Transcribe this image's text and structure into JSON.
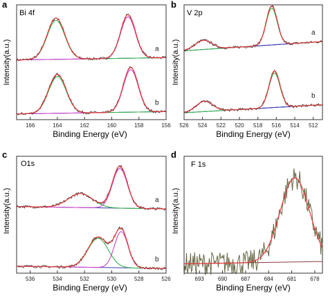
{
  "colors": {
    "green": "#2fb24b",
    "red": "#e83a3a",
    "blue": "#3a3ab0",
    "magenta": "#cc44cc",
    "olive": "#666644",
    "dark": "#333333",
    "baseline_brown": "#8b3a3a"
  },
  "chart_data": [
    {
      "panel_letter": "a",
      "type": "line",
      "title": "Bi 4f",
      "xlabel": "Binding Energy (eV)",
      "ylabel": "Intensity(a.u.)",
      "xlim": [
        167,
        156
      ],
      "x_reversed": true,
      "ylim": [
        0,
        1
      ],
      "xticks": [
        166,
        164,
        162,
        160,
        158,
        156
      ],
      "xtick_labels": [
        "166",
        "164",
        "162",
        "160",
        "158",
        "156"
      ],
      "y_ticks_shown": false,
      "traces": [
        {
          "trace_label": "a",
          "offset": 0.52,
          "baseline": {
            "from": 0.0,
            "to": 0.02
          },
          "peaks": [
            {
              "center": 164.1,
              "height": 0.36,
              "width": 0.65
            },
            {
              "center": 158.8,
              "height": 0.38,
              "width": 0.55
            }
          ],
          "components": [
            {
              "color": "green",
              "center": 164.1,
              "height": 0.34,
              "width": 0.65
            },
            {
              "color": "magenta",
              "center": 158.8,
              "height": 0.36,
              "width": 0.55
            }
          ]
        },
        {
          "trace_label": "b",
          "offset": 0.05,
          "baseline": {
            "from": 0.0,
            "to": 0.02
          },
          "peaks": [
            {
              "center": 164.0,
              "height": 0.34,
              "width": 0.65
            },
            {
              "center": 158.6,
              "height": 0.39,
              "width": 0.55
            }
          ],
          "components": [
            {
              "color": "green",
              "center": 164.0,
              "height": 0.32,
              "width": 0.65
            },
            {
              "color": "magenta",
              "center": 158.6,
              "height": 0.37,
              "width": 0.55
            }
          ]
        }
      ]
    },
    {
      "panel_letter": "b",
      "type": "line",
      "title": "V 2p",
      "xlabel": "Binding Energy (eV)",
      "ylabel": "Intensity(a.u.)",
      "xlim": [
        526,
        511
      ],
      "x_reversed": true,
      "ylim": [
        0,
        1
      ],
      "xticks": [
        526,
        524,
        522,
        520,
        518,
        516,
        514,
        512
      ],
      "xtick_labels": [
        "526",
        "524",
        "522",
        "520",
        "518",
        "516",
        "514",
        "512"
      ],
      "y_ticks_shown": false,
      "traces": [
        {
          "trace_label": "a",
          "offset": 0.6,
          "baseline": {
            "from": 0.0,
            "to": 0.08
          },
          "peaks": [
            {
              "center": 523.9,
              "height": 0.08,
              "width": 0.9
            },
            {
              "center": 516.5,
              "height": 0.34,
              "width": 0.6
            }
          ],
          "components": [
            {
              "color": "blue",
              "center": 523.9,
              "height": 0.08,
              "width": 0.9
            },
            {
              "color": "green",
              "center": 516.5,
              "height": 0.32,
              "width": 0.6
            }
          ]
        },
        {
          "trace_label": "b",
          "offset": 0.06,
          "baseline": {
            "from": 0.0,
            "to": 0.07
          },
          "peaks": [
            {
              "center": 523.8,
              "height": 0.09,
              "width": 0.9
            },
            {
              "center": 516.2,
              "height": 0.32,
              "width": 0.6
            }
          ],
          "components": [
            {
              "color": "blue",
              "center": 523.8,
              "height": 0.09,
              "width": 0.9
            },
            {
              "color": "green",
              "center": 516.2,
              "height": 0.3,
              "width": 0.6
            }
          ]
        }
      ]
    },
    {
      "panel_letter": "c",
      "type": "line",
      "title": "O1s",
      "xlabel": "Binding Energy (eV)",
      "ylabel": "Intensity(a.u.)",
      "xlim": [
        537,
        526
      ],
      "x_reversed": true,
      "ylim": [
        0,
        1
      ],
      "xticks": [
        536,
        534,
        532,
        530,
        528,
        526
      ],
      "xtick_labels": [
        "536",
        "534",
        "532",
        "530",
        "528",
        "526"
      ],
      "y_ticks_shown": false,
      "traces": [
        {
          "trace_label": "a",
          "offset": 0.55,
          "baseline": {
            "from": 0.02,
            "to": 0.0
          },
          "peaks": [
            {
              "center": 532.3,
              "height": 0.12,
              "width": 0.9
            },
            {
              "center": 529.4,
              "height": 0.36,
              "width": 0.55
            }
          ],
          "components": [
            {
              "color": "green",
              "center": 532.3,
              "height": 0.12,
              "width": 0.9
            },
            {
              "color": "magenta",
              "center": 529.4,
              "height": 0.34,
              "width": 0.55
            }
          ]
        },
        {
          "trace_label": "b",
          "offset": 0.04,
          "baseline": {
            "from": 0.02,
            "to": 0.0
          },
          "peaks": [
            {
              "center": 531.0,
              "height": 0.26,
              "width": 0.75
            },
            {
              "center": 529.3,
              "height": 0.32,
              "width": 0.5
            }
          ],
          "components": [
            {
              "color": "green",
              "center": 531.0,
              "height": 0.25,
              "width": 0.75
            },
            {
              "color": "magenta",
              "center": 529.3,
              "height": 0.31,
              "width": 0.5
            }
          ]
        }
      ]
    },
    {
      "panel_letter": "d",
      "type": "line",
      "title": "F 1s",
      "xlabel": "Binding Energy (eV)",
      "ylabel": "Intensity(a.u.)",
      "xlim": [
        695,
        677
      ],
      "x_reversed": true,
      "ylim": [
        0,
        1
      ],
      "xticks": [
        693,
        690,
        687,
        684,
        681,
        678
      ],
      "xtick_labels": [
        "693",
        "690",
        "687",
        "684",
        "681",
        "678"
      ],
      "y_ticks_shown": false,
      "traces": [
        {
          "trace_label": "",
          "offset": 0.08,
          "baseline": {
            "from": 0.0,
            "to": 0.02
          },
          "peaks": [
            {
              "center": 680.6,
              "height": 0.72,
              "width": 1.9
            }
          ],
          "noise": 0.1,
          "components": []
        }
      ]
    }
  ]
}
